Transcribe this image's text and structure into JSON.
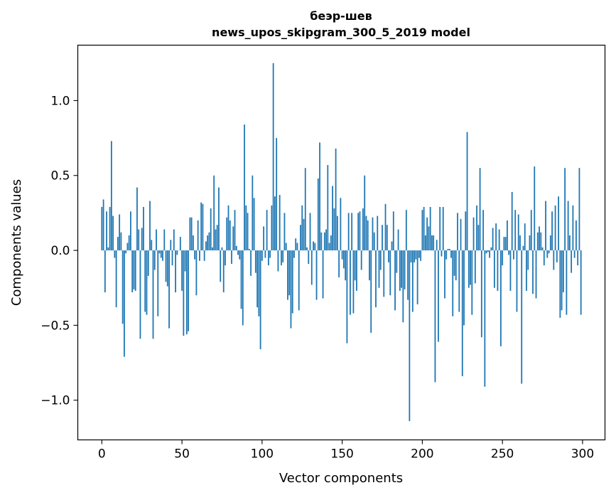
{
  "chart_data": {
    "type": "bar",
    "title_lines": [
      "беэр-шев",
      "news_upos_skipgram_300_5_2019 model"
    ],
    "xlabel": "Vector components",
    "ylabel": "Components values",
    "xlim": [
      -15,
      314
    ],
    "ylim": [
      -1.265,
      1.37
    ],
    "xticks": [
      0,
      50,
      100,
      150,
      200,
      250,
      300
    ],
    "xtick_labels": [
      "0",
      "50",
      "100",
      "150",
      "200",
      "250",
      "300"
    ],
    "yticks": [
      -1.0,
      -0.5,
      0.0,
      0.5,
      1.0
    ],
    "ytick_labels": [
      "−1.0",
      "−0.5",
      "0.0",
      "0.5",
      "1.0"
    ],
    "grid": false,
    "color": "#1f77b4",
    "values": [
      0.29,
      0.34,
      -0.28,
      0.26,
      0.02,
      0.29,
      0.73,
      0.23,
      -0.05,
      -0.38,
      0.09,
      0.24,
      0.12,
      -0.49,
      -0.71,
      -0.02,
      0.05,
      0.1,
      0.26,
      -0.28,
      -0.26,
      -0.27,
      0.42,
      0.14,
      -0.59,
      0.15,
      0.29,
      -0.41,
      -0.43,
      -0.17,
      0.33,
      0.07,
      -0.59,
      -0.13,
      0.14,
      -0.44,
      -0.02,
      -0.05,
      -0.07,
      0.14,
      -0.21,
      -0.24,
      -0.52,
      0.07,
      -0.1,
      0.14,
      -0.28,
      -0.03,
      0.0,
      0.09,
      -0.27,
      -0.57,
      -0.14,
      -0.56,
      -0.54,
      0.22,
      0.22,
      0.1,
      -0.06,
      -0.3,
      0.2,
      -0.07,
      0.32,
      0.31,
      -0.07,
      0.06,
      0.1,
      0.12,
      0.28,
      0.02,
      0.5,
      0.14,
      0.17,
      0.42,
      -0.21,
      0.02,
      -0.28,
      -0.1,
      0.22,
      0.3,
      0.2,
      -0.09,
      0.16,
      0.27,
      0.03,
      -0.03,
      -0.06,
      -0.39,
      -0.5,
      0.84,
      0.3,
      0.25,
      0.01,
      -0.17,
      0.5,
      0.35,
      -0.15,
      -0.38,
      -0.44,
      -0.66,
      -0.07,
      0.16,
      -0.05,
      0.27,
      -0.1,
      -0.05,
      0.3,
      1.25,
      0.36,
      0.75,
      -0.14,
      0.37,
      -0.1,
      -0.08,
      0.25,
      0.05,
      -0.33,
      -0.3,
      -0.52,
      -0.42,
      -0.05,
      0.08,
      0.05,
      -0.4,
      0.17,
      0.3,
      0.21,
      0.55,
      0.02,
      -0.09,
      0.25,
      -0.23,
      0.06,
      0.05,
      -0.33,
      0.48,
      0.72,
      0.12,
      -0.32,
      0.12,
      0.14,
      0.57,
      0.05,
      0.1,
      0.43,
      0.28,
      0.68,
      0.23,
      -0.18,
      0.35,
      -0.06,
      -0.12,
      -0.2,
      -0.62,
      0.25,
      -0.43,
      0.25,
      -0.42,
      -0.2,
      -0.27,
      0.25,
      0.26,
      -0.13,
      0.28,
      0.5,
      0.23,
      0.2,
      -0.2,
      -0.55,
      0.22,
      0.12,
      -0.38,
      0.23,
      -0.25,
      -0.13,
      0.17,
      -0.31,
      0.31,
      0.17,
      -0.08,
      -0.3,
      0.06,
      0.26,
      -0.4,
      -0.15,
      0.14,
      -0.27,
      -0.25,
      -0.48,
      -0.26,
      0.27,
      -0.33,
      -1.14,
      -0.08,
      -0.41,
      -0.08,
      -0.06,
      -0.36,
      -0.05,
      -0.07,
      0.27,
      0.29,
      0.1,
      0.22,
      0.16,
      0.29,
      0.1,
      0.1,
      -0.88,
      0.07,
      -0.61,
      0.29,
      -0.04,
      0.29,
      -0.32,
      -0.06,
      0.01,
      0.01,
      -0.05,
      -0.44,
      -0.17,
      -0.2,
      0.25,
      -0.41,
      0.21,
      -0.84,
      -0.5,
      0.26,
      0.79,
      -0.25,
      -0.23,
      -0.43,
      0.22,
      -0.22,
      0.3,
      0.17,
      0.55,
      -0.58,
      0.27,
      -0.91,
      -0.02,
      -0.01,
      -0.05,
      0.02,
      0.15,
      -0.25,
      0.18,
      -0.27,
      0.14,
      -0.64,
      -0.1,
      0.09,
      0.09,
      0.2,
      -0.03,
      -0.27,
      0.39,
      -0.06,
      0.27,
      -0.41,
      0.24,
      0.1,
      -0.89,
      0.03,
      0.18,
      -0.27,
      -0.13,
      0.1,
      0.27,
      -0.29,
      0.56,
      -0.32,
      0.12,
      0.16,
      0.12,
      0.02,
      -0.1,
      0.33,
      -0.05,
      -0.02,
      0.1,
      0.26,
      -0.13,
      0.3,
      -0.08,
      0.36,
      -0.45,
      -0.4,
      -0.28,
      0.55,
      -0.43,
      0.33,
      0.1,
      -0.15,
      0.3,
      -0.05,
      0.2,
      -0.1,
      0.55,
      -0.43
    ]
  }
}
